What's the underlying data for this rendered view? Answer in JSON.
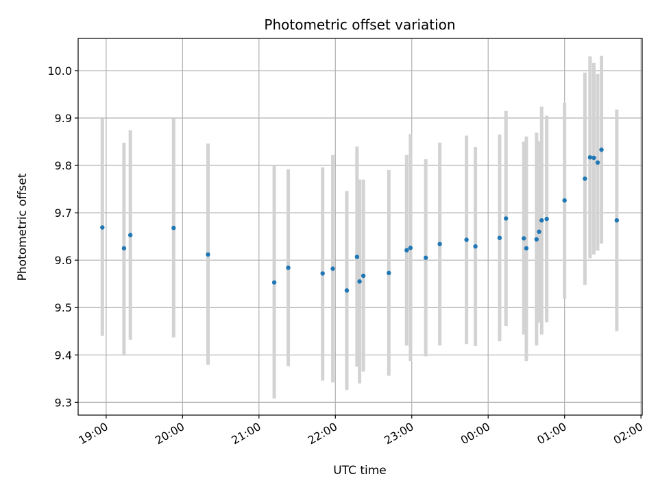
{
  "chart_data": {
    "type": "scatter",
    "title": "Photometric offset variation",
    "xlabel": "UTC time",
    "ylabel": "Photometric offset",
    "x_tick_labels": [
      "19:00",
      "20:00",
      "21:00",
      "22:00",
      "23:00",
      "00:00",
      "01:00",
      "02:00"
    ],
    "x_tick_hours": [
      19,
      20,
      21,
      22,
      23,
      24,
      25,
      26
    ],
    "xlim": [
      "18:38",
      "02:01"
    ],
    "y_ticks": [
      9.3,
      9.4,
      9.5,
      9.6,
      9.7,
      9.8,
      9.9,
      10.0
    ],
    "y_tick_labels": [
      "9.3",
      "9.4",
      "9.5",
      "9.6",
      "9.7",
      "9.8",
      "9.9",
      "10.0"
    ],
    "ylim": [
      9.273,
      10.068
    ],
    "grid": true,
    "series": [
      {
        "marker_color": "#1f77b4",
        "errorbar_color": "#d3d3d3",
        "points": [
          {
            "x": "18:57",
            "y": 9.669,
            "low": 9.44,
            "high": 9.899
          },
          {
            "x": "19:14",
            "y": 9.625,
            "low": 9.401,
            "high": 9.848
          },
          {
            "x": "19:19",
            "y": 9.653,
            "low": 9.432,
            "high": 9.874
          },
          {
            "x": "19:53",
            "y": 9.668,
            "low": 9.437,
            "high": 9.899
          },
          {
            "x": "20:20",
            "y": 9.612,
            "low": 9.379,
            "high": 9.846
          },
          {
            "x": "21:12",
            "y": 9.553,
            "low": 9.308,
            "high": 9.799
          },
          {
            "x": "21:23",
            "y": 9.584,
            "low": 9.376,
            "high": 9.792
          },
          {
            "x": "21:50",
            "y": 9.572,
            "low": 9.346,
            "high": 9.796
          },
          {
            "x": "21:58",
            "y": 9.582,
            "low": 9.342,
            "high": 9.822
          },
          {
            "x": "22:09",
            "y": 9.536,
            "low": 9.326,
            "high": 9.746
          },
          {
            "x": "22:17",
            "y": 9.607,
            "low": 9.375,
            "high": 9.84
          },
          {
            "x": "22:19",
            "y": 9.555,
            "low": 9.34,
            "high": 9.77
          },
          {
            "x": "22:22",
            "y": 9.567,
            "low": 9.365,
            "high": 9.77
          },
          {
            "x": "22:42",
            "y": 9.573,
            "low": 9.356,
            "high": 9.79
          },
          {
            "x": "22:56",
            "y": 9.621,
            "low": 9.42,
            "high": 9.822
          },
          {
            "x": "22:59",
            "y": 9.626,
            "low": 9.387,
            "high": 9.866
          },
          {
            "x": "23:11",
            "y": 9.605,
            "low": 9.397,
            "high": 9.813
          },
          {
            "x": "23:22",
            "y": 9.634,
            "low": 9.42,
            "high": 9.848
          },
          {
            "x": "23:43",
            "y": 9.643,
            "low": 9.423,
            "high": 9.863
          },
          {
            "x": "23:50",
            "y": 9.629,
            "low": 9.419,
            "high": 9.839
          },
          {
            "x": "00:09",
            "y": 9.647,
            "low": 9.429,
            "high": 9.865
          },
          {
            "x": "00:14",
            "y": 9.688,
            "low": 9.461,
            "high": 9.915
          },
          {
            "x": "00:28",
            "y": 9.646,
            "low": 9.443,
            "high": 9.85
          },
          {
            "x": "00:30",
            "y": 9.625,
            "low": 9.387,
            "high": 9.861
          },
          {
            "x": "00:38",
            "y": 9.644,
            "low": 9.42,
            "high": 9.869
          },
          {
            "x": "00:40",
            "y": 9.66,
            "low": 9.468,
            "high": 9.851
          },
          {
            "x": "00:42",
            "y": 9.684,
            "low": 9.443,
            "high": 9.924
          },
          {
            "x": "00:46",
            "y": 9.687,
            "low": 9.469,
            "high": 9.905
          },
          {
            "x": "01:00",
            "y": 9.726,
            "low": 9.519,
            "high": 9.932
          },
          {
            "x": "01:16",
            "y": 9.772,
            "low": 9.548,
            "high": 9.996
          },
          {
            "x": "01:20",
            "y": 9.817,
            "low": 9.604,
            "high": 10.03
          },
          {
            "x": "01:23",
            "y": 9.816,
            "low": 9.612,
            "high": 10.016
          },
          {
            "x": "01:26",
            "y": 9.806,
            "low": 9.62,
            "high": 9.993
          },
          {
            "x": "01:29",
            "y": 9.833,
            "low": 9.635,
            "high": 10.031
          },
          {
            "x": "01:41",
            "y": 9.684,
            "low": 9.45,
            "high": 9.918
          }
        ]
      }
    ]
  }
}
